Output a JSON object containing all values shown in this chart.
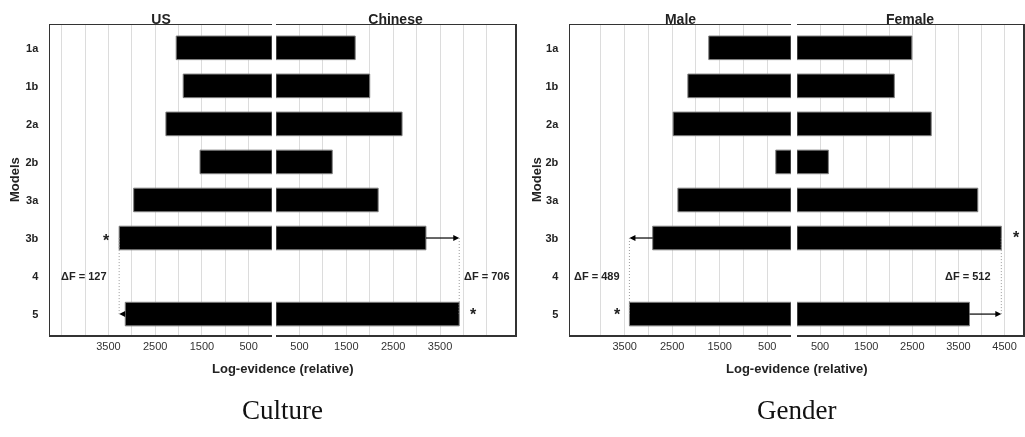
{
  "chart_data": [
    {
      "type": "bar",
      "orientation": "horizontal",
      "title": "US",
      "ylabel": "Models",
      "xlabel": "Log-evidence (relative)",
      "categories": [
        "1a",
        "1b",
        "2a",
        "2b",
        "3a",
        "3b",
        "4",
        "5"
      ],
      "values": [
        2050,
        1900,
        2270,
        1540,
        2960,
        3270,
        null,
        3140
      ],
      "color": "#000000",
      "xlim": [
        4750,
        0
      ],
      "xticks": [
        {
          "value": 4500,
          "label": null
        },
        {
          "value": 4000,
          "label": null
        },
        3500,
        {
          "value": 3000,
          "label": null
        },
        2500,
        {
          "value": 2000,
          "label": null
        },
        1500,
        {
          "value": 1000,
          "label": null
        },
        500
      ],
      "grid": "x",
      "annotations": [
        "*",
        "ΔF = 127",
        "Culture"
      ]
    },
    {
      "type": "bar",
      "orientation": "horizontal",
      "title": "Chinese",
      "tick_labels": "x",
      "categories": [
        null,
        null,
        null,
        null,
        null,
        null,
        null,
        null
      ],
      "values": [
        1690,
        2000,
        2690,
        1200,
        2180,
        3200,
        null,
        3910
      ],
      "color": "#000000",
      "xlim": [
        0,
        5100
      ],
      "xticks": [
        500,
        {
          "value": 1000,
          "label": null
        },
        1500,
        {
          "value": 2000,
          "label": null
        },
        2500,
        {
          "value": 3000,
          "label": null
        },
        3500,
        {
          "value": 4000,
          "label": null
        },
        {
          "value": 4500,
          "label": null
        }
      ],
      "grid": "x",
      "annotations": [
        "*",
        "ΔF = 706"
      ]
    },
    {
      "type": "bar",
      "orientation": "horizontal",
      "title": "Male",
      "ylabel": "Models",
      "xlabel": "Log-evidence (relative)",
      "categories": [
        "1a",
        "1b",
        "2a",
        "2b",
        "3a",
        "3b",
        "4",
        "5"
      ],
      "values": [
        1730,
        2170,
        2480,
        320,
        2380,
        2910,
        null,
        3400
      ],
      "color": "#000000",
      "xlim": [
        4650,
        0
      ],
      "xticks": [
        {
          "value": 4000,
          "label": null
        },
        3500,
        {
          "value": 3000,
          "label": null
        },
        2500,
        {
          "value": 2000,
          "label": null
        },
        1500,
        {
          "value": 1000,
          "label": null
        },
        500
      ],
      "grid": "x",
      "annotations": [
        "*",
        "ΔF = 489",
        "Gender"
      ]
    },
    {
      "type": "bar",
      "orientation": "horizontal",
      "title": "Female",
      "tick_labels": "x",
      "categories": [
        null,
        null,
        null,
        null,
        null,
        null,
        null,
        null
      ],
      "values": [
        2490,
        2110,
        2910,
        680,
        3920,
        4430,
        null,
        3740
      ],
      "color": "#000000",
      "xlim": [
        0,
        4900
      ],
      "xticks": [
        500,
        {
          "value": 1000,
          "label": null
        },
        1500,
        {
          "value": 2000,
          "label": null
        },
        2500,
        {
          "value": 3000,
          "label": null
        },
        3500,
        {
          "value": 4000,
          "label": null
        },
        4500
      ],
      "grid": "x",
      "annotations": [
        "*",
        "ΔF = 512"
      ]
    }
  ]
}
